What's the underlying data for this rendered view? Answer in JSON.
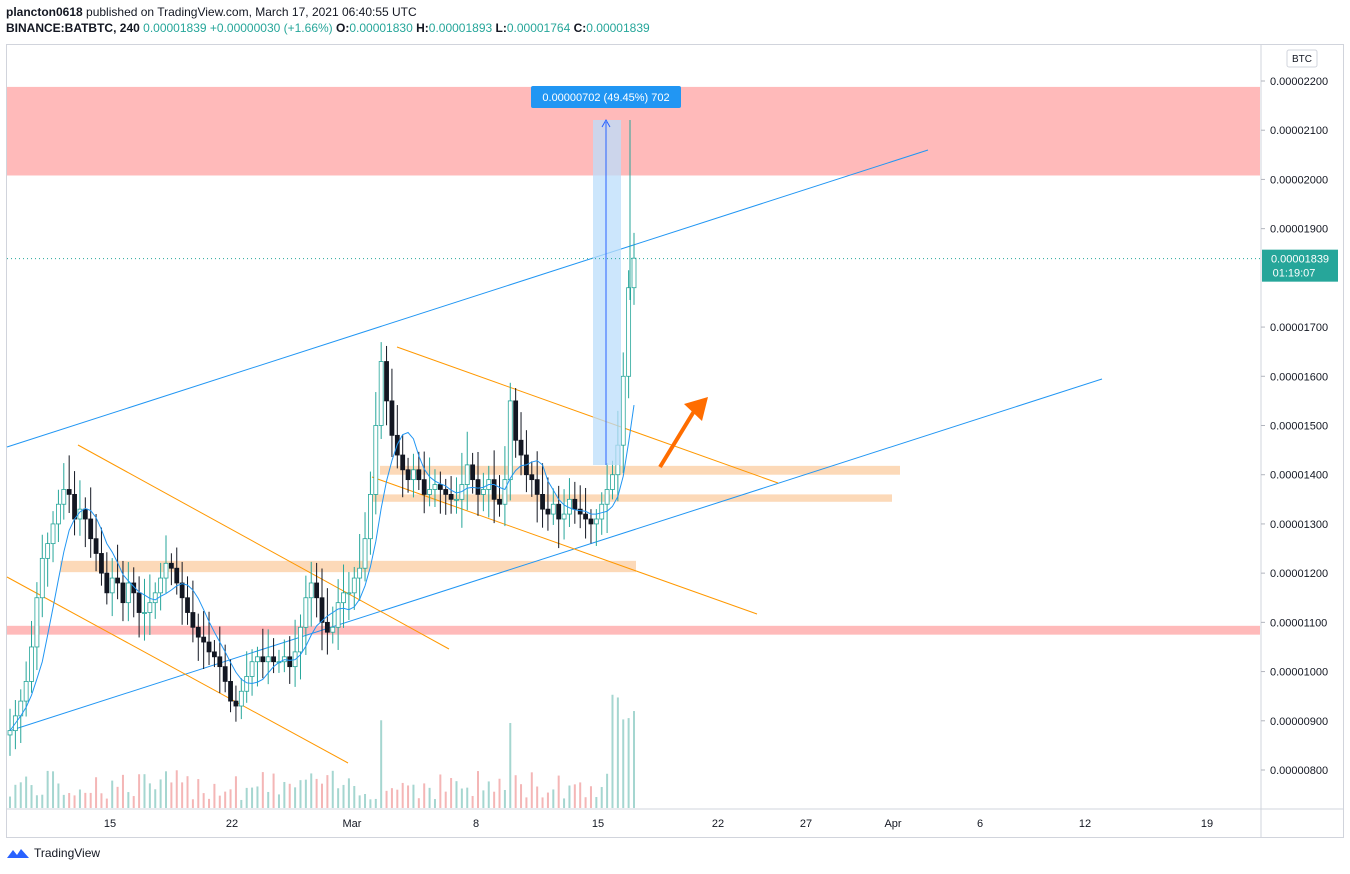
{
  "header": {
    "user": "plancton0618",
    "published": " published on TradingView.com, March 17, 2021 06:40:55 UTC",
    "symbol": "BINANCE:BATBTC, 240",
    "last": "0.00001839",
    "change": "+0.00000030 (+1.66%)",
    "o_label": "O:",
    "o": "0.00001830",
    "h_label": "H:",
    "h": "0.00001893",
    "l_label": "L:",
    "l": "0.00001764",
    "c_label": "C:",
    "c": "0.00001839"
  },
  "footer": {
    "brand": "TradingView"
  },
  "colors": {
    "up": "#26a69a",
    "down": "#131722",
    "trend_blue": "#2196f3",
    "orange": "#ff9800",
    "red_zone": "#ffb3b3",
    "orange_zone": "#fcd5b0",
    "price_badge": "#26a69a",
    "measure": "#2962ff"
  },
  "chart_data": {
    "type": "candlestick",
    "currency": "BTC",
    "price_axis_ticks": [
      "0.00002200",
      "0.00002100",
      "0.00002000",
      "0.00001900",
      "0.00001700",
      "0.00001600",
      "0.00001500",
      "0.00001400",
      "0.00001300",
      "0.00001200",
      "0.00001100",
      "0.00001000",
      "0.00000900",
      "0.00000800"
    ],
    "time_axis_labels": [
      "15",
      "22",
      "Mar",
      "8",
      "15",
      "22",
      "27",
      "Apr",
      "6",
      "12",
      "19"
    ],
    "ylim": [
      7.5e-06,
      2.25e-05
    ],
    "last_price": "0.00001839",
    "countdown": "01:19:07",
    "measure_label": "0.00000702 (49.45%) 702",
    "annotations": {
      "resistance_zone": [
        2.008e-05,
        2.188e-05
      ],
      "support_line": [
        1.075e-05,
        1.093e-05
      ],
      "orange_zones": [
        [
          1.4e-05,
          1.418e-05
        ],
        [
          1.345e-05,
          1.36e-05
        ],
        [
          1.202e-05,
          1.225e-05
        ]
      ]
    },
    "price_path": [
      8.8e-06,
      9.1e-06,
      9.4e-06,
      9.8e-06,
      1.05e-05,
      1.15e-05,
      1.23e-05,
      1.26e-05,
      1.3e-05,
      1.34e-05,
      1.37e-05,
      1.36e-05,
      1.31e-05,
      1.33e-05,
      1.31e-05,
      1.27e-05,
      1.24e-05,
      1.2e-05,
      1.16e-05,
      1.19e-05,
      1.18e-05,
      1.14e-05,
      1.18e-05,
      1.16e-05,
      1.12e-05,
      1.12e-05,
      1.14e-05,
      1.16e-05,
      1.19e-05,
      1.22e-05,
      1.21e-05,
      1.18e-05,
      1.15e-05,
      1.12e-05,
      1.09e-05,
      1.07e-05,
      1.06e-05,
      1.04e-05,
      1.03e-05,
      1.01e-05,
      9.8e-06,
      9.4e-06,
      9.3e-06,
      9.6e-06,
      9.9e-06,
      1.02e-05,
      1.03e-05,
      1.02e-05,
      1.03e-05,
      1.02e-05,
      1.02e-05,
      1.03e-05,
      1.01e-05,
      1.04e-05,
      1.09e-05,
      1.15e-05,
      1.18e-05,
      1.15e-05,
      1.1e-05,
      1.08e-05,
      1.09e-05,
      1.14e-05,
      1.16e-05,
      1.16e-05,
      1.19e-05,
      1.21e-05,
      1.27e-05,
      1.36e-05,
      1.5e-05,
      1.63e-05,
      1.55e-05,
      1.48e-05,
      1.44e-05,
      1.41e-05,
      1.39e-05,
      1.41e-05,
      1.39e-05,
      1.36e-05,
      1.37e-05,
      1.38e-05,
      1.37e-05,
      1.36e-05,
      1.35e-05,
      1.35e-05,
      1.38e-05,
      1.42e-05,
      1.39e-05,
      1.36e-05,
      1.37e-05,
      1.39e-05,
      1.35e-05,
      1.34e-05,
      1.39e-05,
      1.55e-05,
      1.47e-05,
      1.44e-05,
      1.4e-05,
      1.39e-05,
      1.36e-05,
      1.33e-05,
      1.32e-05,
      1.34e-05,
      1.31e-05,
      1.32e-05,
      1.35e-05,
      1.33e-05,
      1.32e-05,
      1.31e-05,
      1.3e-05,
      1.31e-05,
      1.34e-05,
      1.37e-05,
      1.4e-05,
      1.46e-05,
      1.6e-05,
      1.78e-05,
      1.84e-05
    ]
  }
}
